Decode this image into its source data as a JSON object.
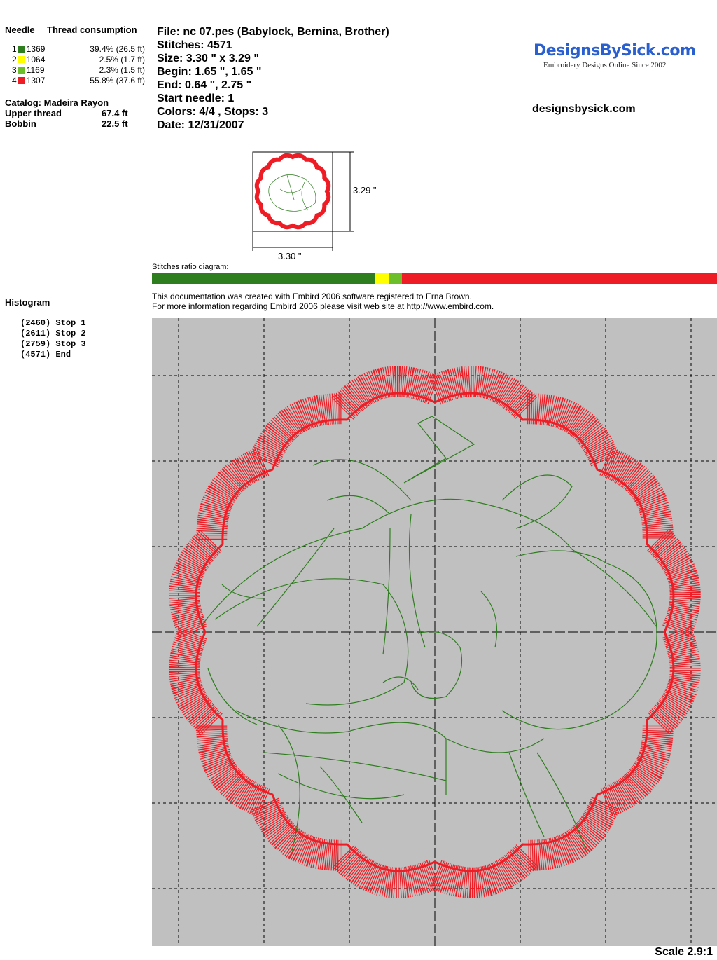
{
  "left": {
    "header_needle": "Needle",
    "header_consumption": "Thread consumption",
    "needles": [
      {
        "num": "1",
        "color": "#2e7d1e",
        "code": "1369",
        "consumption": "39.4% (26.5 ft)"
      },
      {
        "num": "2",
        "color": "#ffff00",
        "code": "1064",
        "consumption": "2.5% (1.7 ft)"
      },
      {
        "num": "3",
        "color": "#6cbf2a",
        "code": "1169",
        "consumption": "2.3% (1.5 ft)"
      },
      {
        "num": "4",
        "color": "#ee1c24",
        "code": "1307",
        "consumption": "55.8% (37.6 ft)"
      }
    ],
    "catalog": "Catalog: Madeira Rayon",
    "upper_thread_label": "Upper thread",
    "upper_thread_value": "67.4 ft",
    "bobbin_label": "Bobbin",
    "bobbin_value": "22.5 ft",
    "histogram_title": "Histogram",
    "histogram": [
      {
        "count": "(2460)",
        "label": "Stop 1"
      },
      {
        "count": "(2611)",
        "label": "Stop 2"
      },
      {
        "count": "(2759)",
        "label": "Stop 3"
      },
      {
        "count": "(4571)",
        "label": "End"
      }
    ]
  },
  "info": {
    "file": "File: nc 07.pes  (Babylock, Bernina, Brother)",
    "stitches": "Stitches: 4571",
    "size": "Size: 3.30 \" x 3.29 \"",
    "begin": "Begin: 1.65 \", 1.65 \"",
    "end": "End: 0.64 \", 2.75 \"",
    "start_needle": "Start needle: 1",
    "colors": "Colors: 4/4 , Stops: 3",
    "date": "Date: 12/31/2007"
  },
  "logo": {
    "text": "DesignsBySick.com",
    "tagline": "Embroidery Designs Online Since 2002"
  },
  "site": "designsbysick.com",
  "thumbnail": {
    "height_label": "3.29 \"",
    "width_label": "3.30 \""
  },
  "ratio": {
    "label": "Stitches ratio diagram:",
    "segments": [
      {
        "color": "#2e7d1e",
        "percent": 39.4
      },
      {
        "color": "#ffff00",
        "percent": 2.5
      },
      {
        "color": "#6cbf2a",
        "percent": 2.3
      },
      {
        "color": "#ee1c24",
        "percent": 55.8
      }
    ]
  },
  "note_line1": "This documentation was created with Embird 2006 software registered to Erna Brown.",
  "note_line2": "For more information regarding Embird 2006 please visit web site at http://www.embird.com.",
  "scale": "Scale 2.9:1"
}
